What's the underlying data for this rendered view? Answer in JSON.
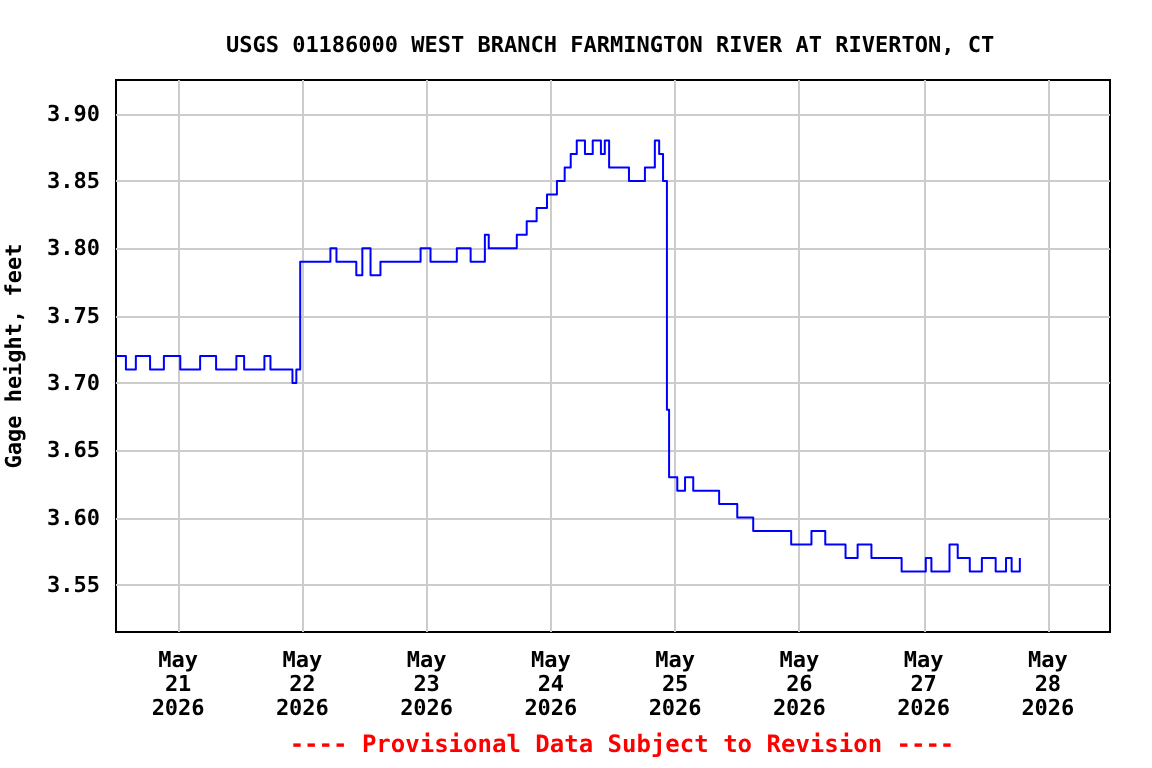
{
  "chart_data": {
    "type": "step",
    "title": "USGS 01186000 WEST BRANCH FARMINGTON RIVER AT RIVERTON, CT",
    "ylabel": "Gage height, feet",
    "annotations": [
      "---- Provisional Data Subject to Revision ----"
    ],
    "x": [
      "2026-05-20T12:00",
      "2026-05-20T13:55",
      "2026-05-20T15:50",
      "2026-05-20T18:35",
      "2026-05-20T21:15",
      "2026-05-21T00:25",
      "2026-05-21T04:15",
      "2026-05-21T07:20",
      "2026-05-21T11:15",
      "2026-05-21T12:45",
      "2026-05-21T16:40",
      "2026-05-21T17:50",
      "2026-05-21T22:05",
      "2026-05-21T22:50",
      "2026-05-21T23:35",
      "2026-05-22T05:25",
      "2026-05-22T06:35",
      "2026-05-22T10:25",
      "2026-05-22T11:35",
      "2026-05-22T13:10",
      "2026-05-22T15:05",
      "2026-05-22T22:50",
      "2026-05-23T00:45",
      "2026-05-23T05:50",
      "2026-05-23T08:30",
      "2026-05-23T11:15",
      "2026-05-23T12:00",
      "2026-05-23T16:40",
      "2026-05-23T17:25",
      "2026-05-23T19:20",
      "2026-05-23T21:15",
      "2026-05-23T23:15",
      "2026-05-24T01:10",
      "2026-05-24T02:40",
      "2026-05-24T03:50",
      "2026-05-24T05:00",
      "2026-05-24T06:35",
      "2026-05-24T08:05",
      "2026-05-24T09:40",
      "2026-05-24T10:25",
      "2026-05-24T11:15",
      "2026-05-24T14:40",
      "2026-05-24T15:05",
      "2026-05-24T17:25",
      "2026-05-24T18:10",
      "2026-05-24T20:05",
      "2026-05-24T20:55",
      "2026-05-24T21:40",
      "2026-05-24T22:25",
      "2026-05-24T22:50",
      "2026-05-25T00:25",
      "2026-05-25T01:55",
      "2026-05-25T03:30",
      "2026-05-25T07:45",
      "2026-05-25T08:30",
      "2026-05-25T12:00",
      "2026-05-25T15:05",
      "2026-05-25T21:40",
      "2026-05-25T22:25",
      "2026-05-26T02:20",
      "2026-05-26T05:00",
      "2026-05-26T08:05",
      "2026-05-26T08:55",
      "2026-05-26T11:15",
      "2026-05-26T13:55",
      "2026-05-26T19:00",
      "2026-05-26T19:45",
      "2026-05-27T00:25",
      "2026-05-27T01:30",
      "2026-05-27T05:00",
      "2026-05-27T06:35",
      "2026-05-27T08:55",
      "2026-05-27T11:15",
      "2026-05-27T13:55",
      "2026-05-27T15:55",
      "2026-05-27T17:00",
      "2026-05-27T18:35"
    ],
    "series": [
      {
        "color": "#0000ff",
        "values": [
          3.72,
          3.71,
          3.72,
          3.71,
          3.72,
          3.71,
          3.72,
          3.71,
          3.72,
          3.71,
          3.72,
          3.71,
          3.7,
          3.71,
          3.79,
          3.8,
          3.79,
          3.78,
          3.8,
          3.78,
          3.79,
          3.8,
          3.79,
          3.8,
          3.79,
          3.81,
          3.8,
          3.8,
          3.81,
          3.82,
          3.83,
          3.84,
          3.85,
          3.86,
          3.87,
          3.88,
          3.87,
          3.88,
          3.87,
          3.88,
          3.86,
          3.86,
          3.85,
          3.85,
          3.86,
          3.88,
          3.87,
          3.85,
          3.68,
          3.63,
          3.62,
          3.63,
          3.62,
          3.62,
          3.61,
          3.6,
          3.59,
          3.59,
          3.58,
          3.59,
          3.58,
          3.58,
          3.57,
          3.58,
          3.57,
          3.57,
          3.56,
          3.57,
          3.56,
          3.58,
          3.57,
          3.56,
          3.57,
          3.56,
          3.57,
          3.56,
          3.57
        ]
      }
    ],
    "xlim": [
      "2026-05-20T12:00",
      "2026-05-28T12:00"
    ],
    "xticks": [
      {
        "value": "2026-05-21",
        "label": "May\n21\n2026"
      },
      {
        "value": "2026-05-22",
        "label": "May\n22\n2026"
      },
      {
        "value": "2026-05-23",
        "label": "May\n23\n2026"
      },
      {
        "value": "2026-05-24",
        "label": "May\n24\n2026"
      },
      {
        "value": "2026-05-25",
        "label": "May\n25\n2026"
      },
      {
        "value": "2026-05-26",
        "label": "May\n26\n2026"
      },
      {
        "value": "2026-05-27",
        "label": "May\n27\n2026"
      },
      {
        "value": "2026-05-28",
        "label": "May\n28\n2026"
      }
    ],
    "ylim": [
      3.515,
      3.925
    ],
    "yticks": [
      {
        "value": 3.55,
        "label": "3.55"
      },
      {
        "value": 3.6,
        "label": "3.60"
      },
      {
        "value": 3.65,
        "label": "3.65"
      },
      {
        "value": 3.7,
        "label": "3.70"
      },
      {
        "value": 3.75,
        "label": "3.75"
      },
      {
        "value": 3.8,
        "label": "3.80"
      },
      {
        "value": 3.85,
        "label": "3.85"
      },
      {
        "value": 3.9,
        "label": "3.90"
      }
    ],
    "grid": true,
    "marker": "none",
    "line_style": "solid"
  }
}
